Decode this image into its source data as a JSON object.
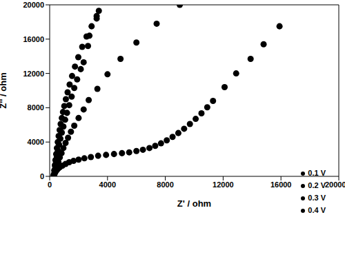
{
  "chart_data": {
    "type": "scatter",
    "x_label": "Z' / ohm",
    "y_label": "Z'' / ohm",
    "xlim": [
      0,
      20000
    ],
    "ylim": [
      0,
      20000
    ],
    "xticks": [
      0,
      4000,
      8000,
      12000,
      16000,
      20000
    ],
    "yticks": [
      0,
      4000,
      8000,
      12000,
      16000,
      20000
    ],
    "grid": false,
    "legend": "lower right",
    "marker": "circle",
    "series": [
      {
        "name": "0.1 V",
        "color": "#000000",
        "x": [
          280,
          320,
          360,
          400,
          450,
          500,
          560,
          620,
          690,
          760,
          840,
          920,
          1010,
          1120,
          1240,
          1380,
          1550,
          1750,
          1980,
          2250,
          2550,
          2900,
          3250,
          3400
        ],
        "values": [
          200,
          700,
          1300,
          1900,
          2600,
          3300,
          4000,
          4700,
          5400,
          6100,
          6800,
          7500,
          8200,
          9000,
          9800,
          10700,
          11700,
          12800,
          13900,
          15100,
          16300,
          17500,
          18700,
          19300
        ]
      },
      {
        "name": "0.2 V",
        "color": "#000000",
        "x": [
          290,
          340,
          390,
          440,
          500,
          570,
          650,
          740,
          840,
          950,
          1070,
          1200,
          1350,
          1520,
          1700,
          1900,
          2150,
          2350,
          2650,
          2750,
          3250
        ],
        "values": [
          150,
          600,
          1100,
          1700,
          2300,
          3000,
          3700,
          4400,
          5100,
          5800,
          6600,
          7400,
          8300,
          9300,
          10300,
          11300,
          12500,
          13300,
          15200,
          16400,
          18400
        ]
      },
      {
        "name": "0.3 V",
        "color": "#000000",
        "x": [
          300,
          360,
          430,
          510,
          600,
          700,
          820,
          950,
          1100,
          1270,
          1470,
          1700,
          2000,
          2350,
          2700,
          3300,
          4000,
          4900,
          6000,
          7400,
          9000
        ],
        "values": [
          100,
          400,
          800,
          1200,
          1700,
          2200,
          2700,
          3300,
          3900,
          4500,
          5200,
          5900,
          6800,
          7800,
          8900,
          10200,
          11900,
          13700,
          15600,
          17800,
          20000
        ]
      },
      {
        "name": "0.4 V",
        "color": "#000000",
        "x": [
          280,
          320,
          380,
          460,
          560,
          700,
          880,
          1100,
          1350,
          1650,
          2000,
          2400,
          2850,
          3350,
          3900,
          4450,
          5000,
          5500,
          6000,
          6450,
          6900,
          7300,
          7700,
          8100,
          8500,
          8900,
          9300,
          9700,
          10100,
          10500,
          10900,
          11300,
          12100,
          12900,
          13900,
          14800,
          15900
        ],
        "values": [
          50,
          250,
          450,
          650,
          850,
          1050,
          1250,
          1450,
          1650,
          1800,
          1950,
          2100,
          2250,
          2400,
          2500,
          2600,
          2700,
          2800,
          2950,
          3100,
          3300,
          3550,
          3850,
          4200,
          4600,
          5050,
          5550,
          6100,
          6700,
          7350,
          8050,
          8800,
          10400,
          12000,
          13700,
          15400,
          17500
        ]
      }
    ]
  }
}
